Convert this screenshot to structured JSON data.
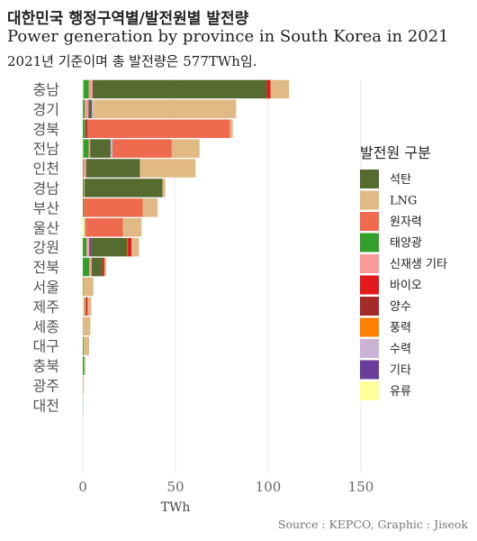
{
  "header": {
    "title": "대한민국 행정구역별/발전원별 발전량",
    "subtitle": "Power generation by province in South Korea in 2021",
    "description": "2021년 기준이며 총 발전량은 577TWh임."
  },
  "footer": {
    "source": "Source : KEPCO, Graphic : Jiseok"
  },
  "legend": {
    "title": "발전원 구분"
  },
  "chart_data": {
    "type": "bar",
    "orientation": "horizontal",
    "stacked": true,
    "xlabel": "TWh",
    "ylabel": "",
    "xlim": [
      0,
      160
    ],
    "xticks": [
      0,
      50,
      100,
      150
    ],
    "grid": true,
    "legend_position": "right",
    "categories": [
      "충남",
      "경기",
      "경북",
      "전남",
      "인천",
      "경남",
      "부산",
      "울산",
      "강원",
      "전북",
      "서울",
      "제주",
      "세종",
      "대구",
      "충북",
      "광주",
      "대전"
    ],
    "series": [
      {
        "name": "유류",
        "color": "#ffff99",
        "values": [
          0.3,
          0.1,
          0,
          0.2,
          0,
          0,
          0,
          1.0,
          0,
          0,
          0,
          0.5,
          0,
          0,
          0,
          0,
          0
        ]
      },
      {
        "name": "태양광",
        "color": "#33a02c",
        "values": [
          3.0,
          1.0,
          1.2,
          3.0,
          0.3,
          0.5,
          0.4,
          0.2,
          2.0,
          3.5,
          0.2,
          0.3,
          0.1,
          0.4,
          0.8,
          0.1,
          0.1
        ]
      },
      {
        "name": "신재생 기타",
        "color": "#fb9a99",
        "values": [
          2.0,
          2.0,
          0.2,
          0.8,
          1.5,
          0.5,
          0,
          0.5,
          1.5,
          1.3,
          0,
          0.8,
          0,
          0,
          0,
          0,
          0
        ]
      },
      {
        "name": "기타",
        "color": "#6a3d9a",
        "values": [
          0,
          0.3,
          0,
          0,
          0,
          0,
          0,
          0,
          1.0,
          0,
          0,
          0,
          0,
          0,
          0,
          0,
          0
        ]
      },
      {
        "name": "석탄",
        "color": "#556b2f",
        "values": [
          94,
          1.5,
          0,
          11,
          29,
          42,
          0,
          0,
          19.5,
          5.8,
          0,
          0,
          0,
          0,
          0,
          0,
          0
        ]
      },
      {
        "name": "양수",
        "color": "#a52a2a",
        "values": [
          0,
          0,
          1.0,
          0,
          0,
          0,
          0,
          0,
          0,
          0,
          0,
          0,
          0,
          0,
          0,
          0,
          0
        ]
      },
      {
        "name": "수력",
        "color": "#cab2d6",
        "values": [
          0,
          0.8,
          0,
          1.0,
          0,
          0,
          0,
          0,
          0,
          0,
          0,
          0,
          0,
          0,
          0,
          0,
          0
        ]
      },
      {
        "name": "풍력",
        "color": "#ff7f00",
        "values": [
          0,
          0,
          0,
          0,
          0,
          0,
          0,
          0,
          0.3,
          0,
          0,
          0,
          0,
          0,
          0,
          0,
          0
        ]
      },
      {
        "name": "원자력",
        "color": "#f06a50",
        "values": [
          0,
          0,
          77,
          32,
          0,
          0,
          32,
          20,
          0,
          0,
          0,
          0,
          0,
          0,
          0,
          0,
          0
        ]
      },
      {
        "name": "바이오",
        "color": "#e31a1c",
        "values": [
          2.0,
          0,
          0,
          0,
          0,
          0,
          0,
          0,
          2.0,
          1.0,
          0,
          1.0,
          0,
          0,
          0,
          0,
          0
        ]
      },
      {
        "name": "LNG",
        "color": "#e0b985",
        "values": [
          10,
          77,
          1.5,
          15,
          30,
          1.5,
          8,
          10,
          4,
          1,
          5.5,
          2,
          4,
          3,
          0.5,
          0.4,
          0
        ]
      }
    ],
    "legend_order": [
      "석탄",
      "LNG",
      "원자력",
      "태양광",
      "신재생 기타",
      "바이오",
      "양수",
      "풍력",
      "수력",
      "기타",
      "유류"
    ]
  }
}
